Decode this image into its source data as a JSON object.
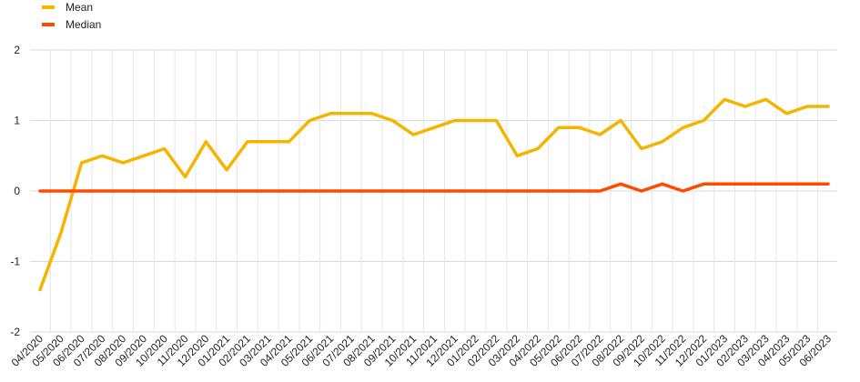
{
  "chart_data": {
    "type": "line",
    "title": "",
    "xlabel": "",
    "ylabel": "",
    "ylim": [
      -2,
      2
    ],
    "yticks": [
      2,
      1,
      0,
      -1,
      -2
    ],
    "grid": true,
    "legend_position": "top-left",
    "categories": [
      "04/2020",
      "05/2020",
      "06/2020",
      "07/2020",
      "08/2020",
      "09/2020",
      "10/2020",
      "11/2020",
      "12/2020",
      "01/2021",
      "02/2021",
      "03/2021",
      "04/2021",
      "05/2021",
      "06/2021",
      "07/2021",
      "08/2021",
      "09/2021",
      "10/2021",
      "11/2021",
      "12/2021",
      "01/2022",
      "02/2022",
      "03/2022",
      "04/2022",
      "05/2022",
      "06/2022",
      "07/2022",
      "08/2022",
      "09/2022",
      "10/2022",
      "11/2022",
      "12/2022",
      "01/2023",
      "02/2023",
      "03/2023",
      "04/2023",
      "05/2023",
      "06/2023"
    ],
    "series": [
      {
        "name": "Mean",
        "color": "#F5B400",
        "values": [
          -1.4,
          -0.6,
          0.4,
          0.5,
          0.4,
          0.5,
          0.6,
          0.2,
          0.7,
          0.3,
          0.7,
          0.7,
          0.7,
          1.0,
          1.1,
          1.1,
          1.1,
          1.0,
          0.8,
          0.9,
          1.0,
          1.0,
          1.0,
          0.5,
          0.6,
          0.9,
          0.9,
          0.8,
          1.0,
          0.6,
          0.7,
          0.9,
          1.0,
          1.3,
          1.2,
          1.3,
          1.1,
          1.2,
          1.2
        ]
      },
      {
        "name": "Median",
        "color": "#FF4B00",
        "values": [
          0,
          0,
          0,
          0,
          0,
          0,
          0,
          0,
          0,
          0,
          0,
          0,
          0,
          0,
          0,
          0,
          0,
          0,
          0,
          0,
          0,
          0,
          0,
          0,
          0,
          0,
          0,
          0,
          0.1,
          0,
          0.1,
          0,
          0.1,
          0.1,
          0.1,
          0.1,
          0.1,
          0.1,
          0.1
        ]
      }
    ]
  }
}
